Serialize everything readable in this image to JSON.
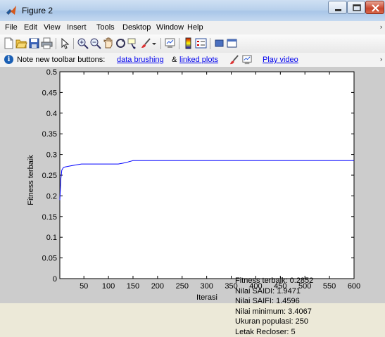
{
  "window": {
    "title": "Figure 2"
  },
  "menu": [
    "File",
    "Edit",
    "View",
    "Insert",
    "Tools",
    "Desktop",
    "Window",
    "Help"
  ],
  "toolbar_icons": [
    "new-figure-icon",
    "open-file-icon",
    "save-icon",
    "print-icon",
    "edit-plot-icon",
    "zoom-in-icon",
    "zoom-out-icon",
    "pan-icon",
    "rotate-icon",
    "data-cursor-icon",
    "brush-icon",
    "link-icon",
    "colorbar-icon",
    "legend-icon",
    "hide-tools-icon",
    "show-tools-icon"
  ],
  "infobar": {
    "prefix": "Note new toolbar buttons:",
    "link1": "data brushing",
    "amp": "&",
    "link2": "linked plots",
    "link3": "Play video"
  },
  "chart_data": {
    "type": "line",
    "xlabel": "Iterasi",
    "ylabel": "Fitness terbaik",
    "xlim": [
      1,
      600
    ],
    "ylim": [
      0,
      0.5
    ],
    "xticks": [
      50,
      100,
      150,
      200,
      250,
      300,
      350,
      400,
      450,
      500,
      550,
      600
    ],
    "yticks": [
      0,
      0.05,
      0.1,
      0.15,
      0.2,
      0.25,
      0.3,
      0.35,
      0.4,
      0.45,
      0.5
    ],
    "ytick_labels": [
      "0",
      "0.05",
      "0.1",
      "0.15",
      "0.2",
      "0.25",
      "0.3",
      "0.35",
      "0.4",
      "0.45",
      "0.5"
    ],
    "series": [
      {
        "color": "#0000ff",
        "x": [
          1,
          3,
          5,
          8,
          12,
          20,
          30,
          45,
          60,
          80,
          100,
          120,
          130,
          140,
          150,
          200,
          300,
          400,
          500,
          600
        ],
        "y": [
          0.19,
          0.24,
          0.262,
          0.268,
          0.27,
          0.272,
          0.274,
          0.277,
          0.277,
          0.277,
          0.277,
          0.277,
          0.279,
          0.282,
          0.2852,
          0.2852,
          0.2852,
          0.2852,
          0.2852,
          0.2852
        ]
      }
    ],
    "annotation": [
      "Fitness terbaik:  0.2852",
      "Nilai SAIDI: 1.9471",
      "Nilai SAIFI: 1.4596",
      "Nilai minimum: 3.4067",
      "Ukuran populasi: 250",
      "Letak Recloser: 5"
    ]
  }
}
